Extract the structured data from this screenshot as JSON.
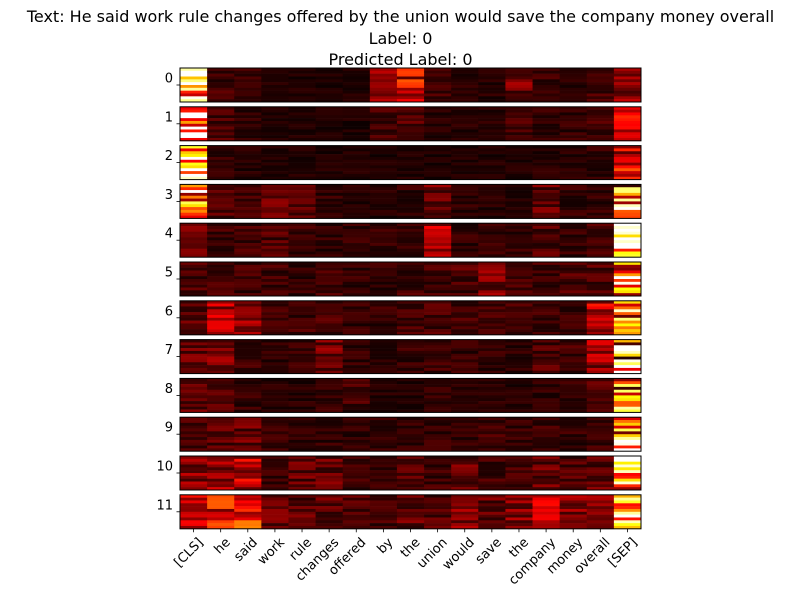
{
  "title": {
    "text_line": "Text: He said work rule changes offered by the union would save the company money overall",
    "label_line": "Label: 0",
    "pred_line": "Predicted Label: 0"
  },
  "colors": {
    "colormap": "hot",
    "background": "#ffffff"
  },
  "chart_data": {
    "type": "heatmap",
    "title": "Text: He said work rule changes offered by the union would save the company money overall\nLabel: 0\nPredicted Label: 0",
    "xlabel": "",
    "ylabel": "",
    "grid": false,
    "layers": [
      "0",
      "1",
      "2",
      "3",
      "4",
      "5",
      "6",
      "7",
      "8",
      "9",
      "10",
      "11"
    ],
    "tokens": [
      "[CLS]",
      "he",
      "said",
      "work",
      "rule",
      "changes",
      "offered",
      "by",
      "the",
      "union",
      "would",
      "save",
      "the",
      "company",
      "money",
      "overall",
      "[SEP]"
    ],
    "heads_per_layer": 12,
    "column_mean_intensity": [
      [
        0.85,
        0.1,
        0.08,
        0.05,
        0.05,
        0.05,
        0.05,
        0.2,
        0.35,
        0.1,
        0.06,
        0.06,
        0.18,
        0.1,
        0.08,
        0.1,
        0.2
      ],
      [
        0.9,
        0.12,
        0.08,
        0.05,
        0.05,
        0.05,
        0.05,
        0.1,
        0.12,
        0.06,
        0.06,
        0.06,
        0.12,
        0.08,
        0.08,
        0.1,
        0.35
      ],
      [
        0.95,
        0.08,
        0.06,
        0.05,
        0.05,
        0.05,
        0.05,
        0.05,
        0.05,
        0.05,
        0.05,
        0.05,
        0.05,
        0.06,
        0.06,
        0.08,
        0.35
      ],
      [
        0.85,
        0.12,
        0.1,
        0.18,
        0.12,
        0.08,
        0.06,
        0.06,
        0.08,
        0.2,
        0.08,
        0.06,
        0.06,
        0.15,
        0.08,
        0.08,
        0.7
      ],
      [
        0.15,
        0.1,
        0.1,
        0.12,
        0.1,
        0.08,
        0.08,
        0.08,
        0.08,
        0.35,
        0.08,
        0.08,
        0.08,
        0.12,
        0.08,
        0.1,
        0.92
      ],
      [
        0.12,
        0.1,
        0.1,
        0.1,
        0.08,
        0.1,
        0.08,
        0.08,
        0.1,
        0.1,
        0.12,
        0.18,
        0.1,
        0.1,
        0.12,
        0.12,
        0.85
      ],
      [
        0.15,
        0.25,
        0.2,
        0.1,
        0.1,
        0.12,
        0.08,
        0.08,
        0.1,
        0.12,
        0.1,
        0.1,
        0.1,
        0.1,
        0.1,
        0.3,
        0.85
      ],
      [
        0.15,
        0.2,
        0.1,
        0.08,
        0.08,
        0.18,
        0.08,
        0.06,
        0.08,
        0.1,
        0.08,
        0.08,
        0.08,
        0.12,
        0.1,
        0.25,
        0.92
      ],
      [
        0.15,
        0.12,
        0.08,
        0.06,
        0.06,
        0.08,
        0.1,
        0.06,
        0.06,
        0.08,
        0.06,
        0.06,
        0.06,
        0.08,
        0.08,
        0.12,
        0.85
      ],
      [
        0.12,
        0.15,
        0.15,
        0.08,
        0.08,
        0.08,
        0.08,
        0.08,
        0.08,
        0.08,
        0.08,
        0.1,
        0.08,
        0.1,
        0.08,
        0.1,
        0.85
      ],
      [
        0.2,
        0.22,
        0.28,
        0.08,
        0.15,
        0.15,
        0.1,
        0.08,
        0.12,
        0.1,
        0.15,
        0.1,
        0.1,
        0.15,
        0.12,
        0.15,
        0.85
      ],
      [
        0.3,
        0.35,
        0.4,
        0.15,
        0.15,
        0.15,
        0.12,
        0.1,
        0.15,
        0.12,
        0.2,
        0.15,
        0.2,
        0.28,
        0.2,
        0.18,
        0.7
      ]
    ]
  }
}
